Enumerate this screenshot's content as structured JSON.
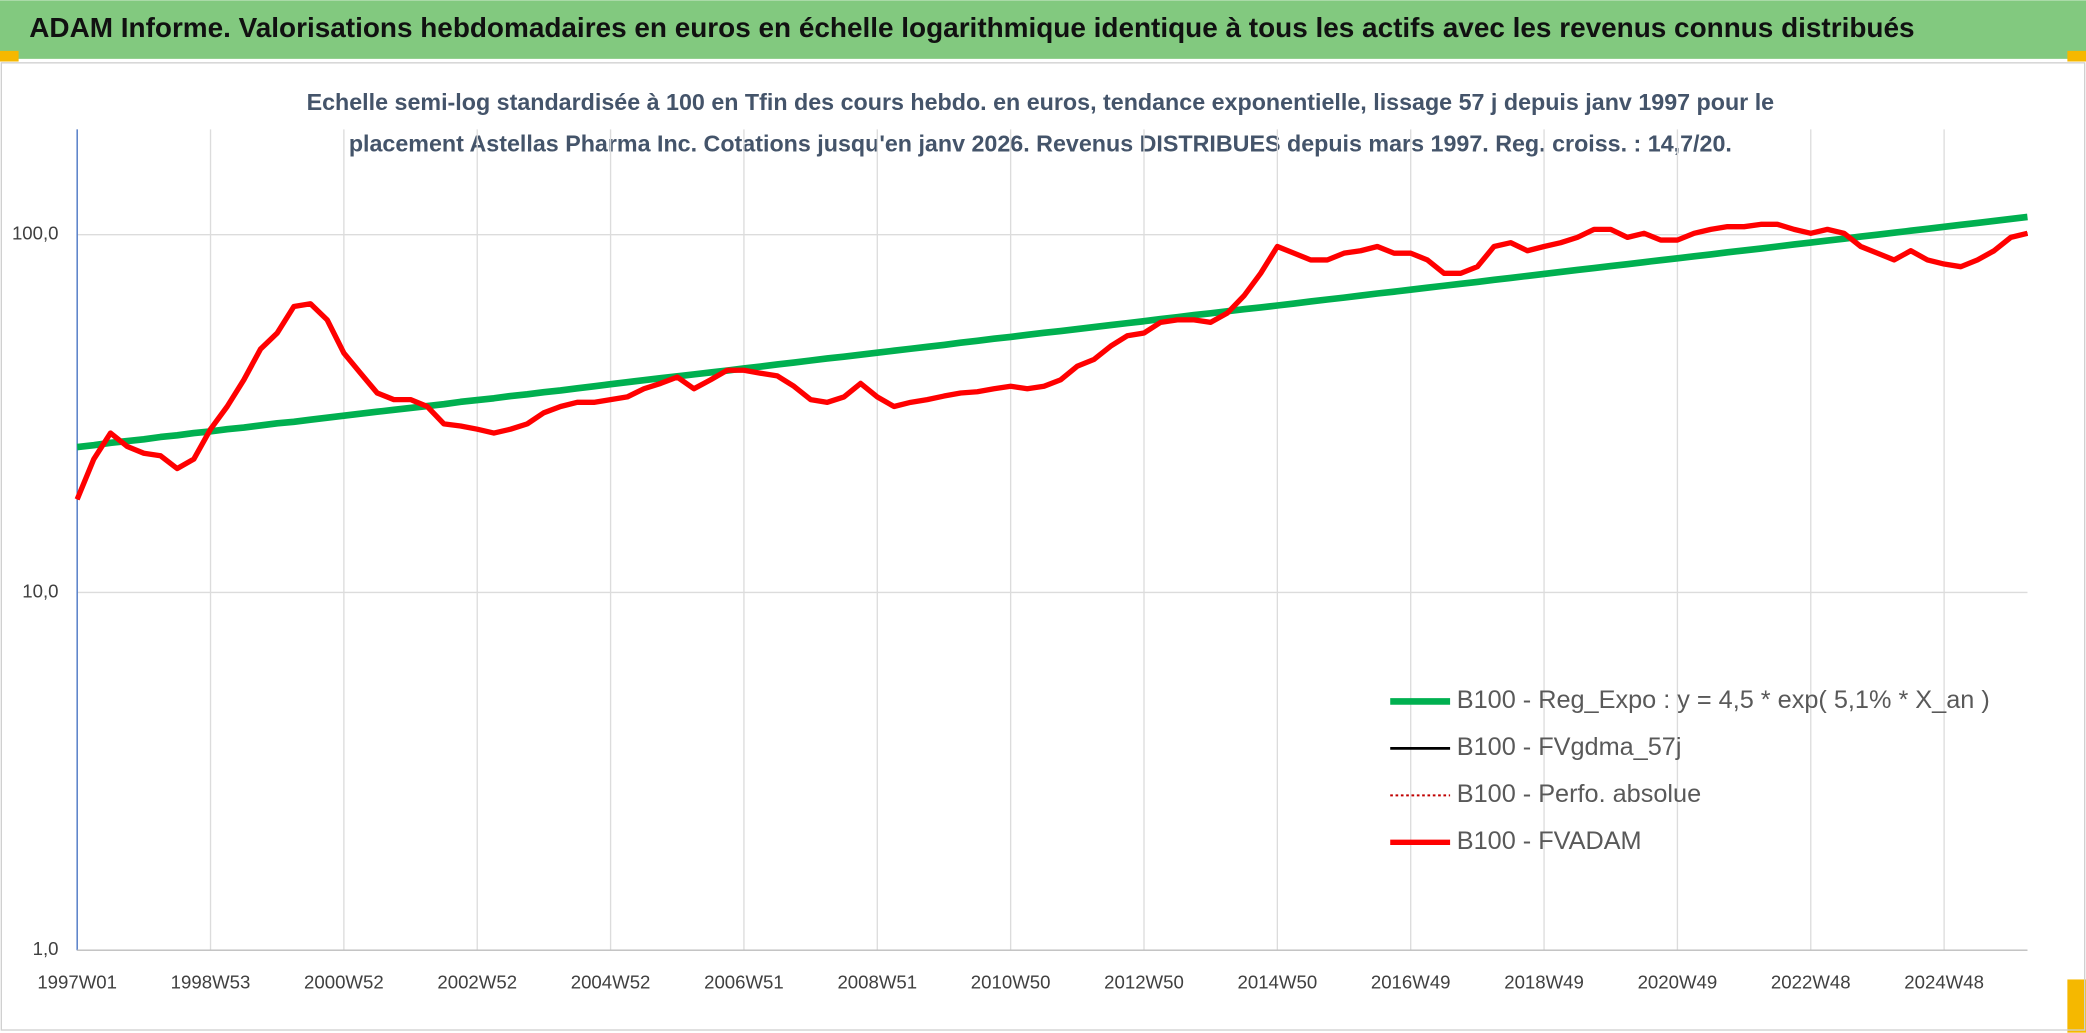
{
  "chart_data": {
    "type": "line",
    "title": "ADAM Informe. Valorisations hebdomadaires en euros en échelle logarithmique identique à tous les actifs avec les revenus connus distribués",
    "subtitle_lines": [
      "Echelle semi-log standardisée à 100 en Tfin des cours hebdo. en euros, tendance exponentielle, lissage 57 j depuis janv 1997 pour le",
      "placement Astellas Pharma Inc. Cotations jusqu'en janv 2026. Revenus DISTRIBUES depuis mars 1997. Reg. croiss. : 14,7/20."
    ],
    "log_scale": true,
    "grid": true,
    "legend": "lower right",
    "ylim": [
      1,
      197
    ],
    "yticks": [
      {
        "value": 1,
        "label": "1,0"
      },
      {
        "value": 10,
        "label": "10,0"
      },
      {
        "value": 100,
        "label": "100,0"
      }
    ],
    "categories": [
      "1997W01",
      null,
      null,
      null,
      null,
      null,
      null,
      null,
      "1998W53",
      null,
      null,
      null,
      null,
      null,
      null,
      null,
      "2000W52",
      null,
      null,
      null,
      null,
      null,
      null,
      null,
      "2002W52",
      null,
      null,
      null,
      null,
      null,
      null,
      null,
      "2004W52",
      null,
      null,
      null,
      null,
      null,
      null,
      null,
      "2006W51",
      null,
      null,
      null,
      null,
      null,
      null,
      null,
      "2008W51",
      null,
      null,
      null,
      null,
      null,
      null,
      null,
      "2010W50",
      null,
      null,
      null,
      null,
      null,
      null,
      null,
      "2012W50",
      null,
      null,
      null,
      null,
      null,
      null,
      null,
      "2014W50",
      null,
      null,
      null,
      null,
      null,
      null,
      null,
      "2016W49",
      null,
      null,
      null,
      null,
      null,
      null,
      null,
      "2018W49",
      null,
      null,
      null,
      null,
      null,
      null,
      null,
      "2020W49",
      null,
      null,
      null,
      null,
      null,
      null,
      null,
      "2022W48",
      null,
      null,
      null,
      null,
      null,
      null,
      null,
      "2024W48",
      null,
      null,
      null,
      null,
      null
    ],
    "series": [
      {
        "name": "B100 - Reg_Expo : y = 4,5 * exp( 5,1% *  X_an )",
        "color": "#00b050",
        "width": 5,
        "dash": "none",
        "values": [
          25.5,
          25.8,
          26.2,
          26.5,
          26.8,
          27.2,
          27.5,
          27.9,
          28.2,
          28.6,
          28.9,
          29.3,
          29.7,
          30.0,
          30.4,
          30.8,
          31.2,
          31.6,
          32.0,
          32.4,
          32.8,
          33.2,
          33.6,
          34.1,
          34.5,
          34.9,
          35.4,
          35.8,
          36.3,
          36.7,
          37.2,
          37.7,
          38.2,
          38.7,
          39.2,
          39.7,
          40.2,
          40.7,
          41.2,
          41.7,
          42.3,
          42.8,
          43.4,
          43.9,
          44.5,
          45.1,
          45.6,
          46.2,
          46.8,
          47.4,
          48.0,
          48.6,
          49.2,
          49.9,
          50.5,
          51.2,
          51.8,
          52.5,
          53.2,
          53.8,
          54.5,
          55.2,
          55.9,
          56.6,
          57.3,
          58.1,
          58.8,
          59.6,
          60.3,
          61.1,
          61.9,
          62.6,
          63.4,
          64.2,
          65.1,
          65.9,
          66.7,
          67.6,
          68.5,
          69.3,
          70.2,
          71.1,
          72.0,
          72.9,
          73.8,
          74.8,
          75.7,
          76.7,
          77.7,
          78.7,
          79.7,
          80.7,
          81.7,
          82.7,
          83.8,
          84.9,
          85.9,
          87.0,
          88.1,
          89.3,
          90.4,
          91.5,
          92.7,
          93.9,
          95.1,
          96.3,
          97.5,
          98.8,
          100.0,
          101.3,
          102.6,
          103.9,
          105.2,
          106.6,
          107.9,
          109.3,
          110.7,
          112.1
        ]
      },
      {
        "name": "B100 - FVgdma_57j",
        "color": "#000000",
        "width": 2,
        "dash": "none",
        "values": [
          18.2,
          23.6,
          27.9,
          25.6,
          24.5,
          24.1,
          22.2,
          23.6,
          28.6,
          33.1,
          39.3,
          47.9,
          53.1,
          63,
          64.1,
          57.8,
          46.7,
          41,
          36.1,
          34.6,
          34.6,
          33.1,
          29.6,
          29.2,
          28.6,
          27.9,
          28.6,
          29.6,
          31.8,
          33.1,
          34.0,
          34.0,
          34.6,
          35.2,
          37.1,
          38.4,
          40.0,
          37.1,
          39.3,
          41.8,
          41.8,
          41,
          40.3,
          37.7,
          34.6,
          34,
          35.2,
          38.4,
          35.2,
          33.1,
          34,
          34.6,
          35.4,
          36.1,
          36.4,
          37.1,
          37.7,
          37.1,
          37.7,
          39.3,
          42.9,
          44.8,
          48.8,
          52.2,
          53.1,
          56.9,
          57.8,
          57.8,
          56.9,
          60.4,
          67.5,
          78,
          92.7,
          88.8,
          85,
          85,
          88.8,
          90.2,
          92.7,
          88.8,
          88.8,
          85,
          78,
          78,
          81.4,
          92.7,
          95,
          90.2,
          92.7,
          95,
          98.3,
          103.5,
          103.5,
          98.3,
          100.9,
          96.6,
          96.6,
          100.9,
          103.5,
          105.3,
          105.3,
          106.9,
          106.9,
          103.5,
          100.9,
          103.5,
          100.9,
          92.7,
          88.8,
          85,
          90.2,
          85,
          82.8,
          81.4,
          85,
          90.2,
          98.3,
          100.9
        ]
      },
      {
        "name": "B100 - Perfo. absolue",
        "color": "#c00000",
        "width": 1.5,
        "dash": "2 2",
        "values": [
          18.2,
          23.6,
          27.9,
          25.6,
          24.5,
          24.1,
          22.2,
          23.6,
          28.6,
          33.1,
          39.3,
          47.9,
          53.1,
          63,
          64.1,
          57.8,
          46.7,
          41,
          36.1,
          34.6,
          34.6,
          33.1,
          29.6,
          29.2,
          28.6,
          27.9,
          28.6,
          29.6,
          31.8,
          33.1,
          34.0,
          34.0,
          34.6,
          35.2,
          37.1,
          38.4,
          40.0,
          37.1,
          39.3,
          41.8,
          41.8,
          41,
          40.3,
          37.7,
          34.6,
          34,
          35.2,
          38.4,
          35.2,
          33.1,
          34,
          34.6,
          35.4,
          36.1,
          36.4,
          37.1,
          37.7,
          37.1,
          37.7,
          39.3,
          42.9,
          44.8,
          48.8,
          52.2,
          53.1,
          56.9,
          57.8,
          57.8,
          56.9,
          60.4,
          67.5,
          78,
          92.7,
          88.8,
          85,
          85,
          88.8,
          90.2,
          92.7,
          88.8,
          88.8,
          85,
          78,
          78,
          81.4,
          92.7,
          95,
          90.2,
          92.7,
          95,
          98.3,
          103.5,
          103.5,
          98.3,
          100.9,
          96.6,
          96.6,
          100.9,
          103.5,
          105.3,
          105.3,
          106.9,
          106.9,
          103.5,
          100.9,
          103.5,
          100.9,
          92.7,
          88.8,
          85,
          90.2,
          85,
          82.8,
          81.4,
          85,
          90.2,
          98.3,
          100.9
        ]
      },
      {
        "name": "B100 - FVADAM",
        "color": "#ff0000",
        "width": 4,
        "dash": "none",
        "values": [
          18.2,
          23.6,
          27.9,
          25.6,
          24.5,
          24.1,
          22.2,
          23.6,
          28.6,
          33.1,
          39.3,
          47.9,
          53.1,
          63,
          64.1,
          57.8,
          46.7,
          41,
          36.1,
          34.6,
          34.6,
          33.1,
          29.6,
          29.2,
          28.6,
          27.9,
          28.6,
          29.6,
          31.8,
          33.1,
          34.0,
          34.0,
          34.6,
          35.2,
          37.1,
          38.4,
          40.0,
          37.1,
          39.3,
          41.8,
          41.8,
          41,
          40.3,
          37.7,
          34.6,
          34,
          35.2,
          38.4,
          35.2,
          33.1,
          34,
          34.6,
          35.4,
          36.1,
          36.4,
          37.1,
          37.7,
          37.1,
          37.7,
          39.3,
          42.9,
          44.8,
          48.8,
          52.2,
          53.1,
          56.9,
          57.8,
          57.8,
          56.9,
          60.4,
          67.5,
          78,
          92.7,
          88.8,
          85,
          85,
          88.8,
          90.2,
          92.7,
          88.8,
          88.8,
          85,
          78,
          78,
          81.4,
          92.7,
          95,
          90.2,
          92.7,
          95,
          98.3,
          103.5,
          103.5,
          98.3,
          100.9,
          96.6,
          96.6,
          100.9,
          103.5,
          105.3,
          105.3,
          106.9,
          106.9,
          103.5,
          100.9,
          103.5,
          100.9,
          92.7,
          88.8,
          85,
          90.2,
          85,
          82.8,
          81.4,
          85,
          90.2,
          98.3,
          100.9
        ]
      }
    ]
  }
}
